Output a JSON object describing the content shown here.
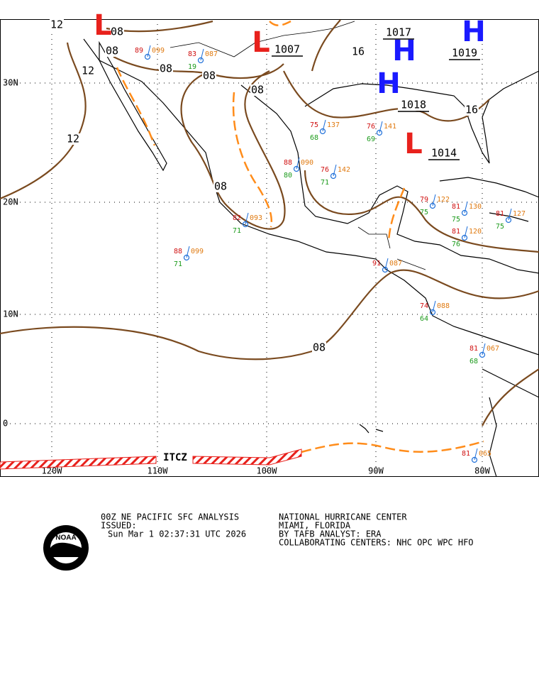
{
  "map": {
    "lat_labels": [
      "30N",
      "20N",
      "10N",
      "0"
    ],
    "lon_labels": [
      "120W",
      "110W",
      "100W",
      "90W",
      "80W"
    ],
    "pressure_centers": [
      {
        "type": "L",
        "value": null
      },
      {
        "type": "L",
        "value": "1007"
      },
      {
        "type": "H",
        "value": "1017"
      },
      {
        "type": "H",
        "value": "1019"
      },
      {
        "type": "H",
        "value": "1018"
      },
      {
        "type": "L",
        "value": "1014"
      }
    ],
    "isobar_labels": [
      "12",
      "08",
      "08",
      "12",
      "08",
      "08",
      "08",
      "16",
      "16",
      "12",
      "08",
      "08"
    ],
    "front_label": "ITCZ",
    "stations": [
      {
        "temp": "88",
        "pressure": "099",
        "dew": "71"
      },
      {
        "temp": "82",
        "pressure": "093",
        "dew": "71"
      },
      {
        "temp": "88",
        "pressure": "090",
        "dew": "80"
      },
      {
        "temp": "76",
        "pressure": "142",
        "dew": "71"
      },
      {
        "temp": "79",
        "pressure": "122",
        "dew": "75"
      },
      {
        "temp": "81",
        "pressure": "130",
        "dew": "75"
      },
      {
        "temp": "81",
        "pressure": "120",
        "dew": "76"
      },
      {
        "temp": "81",
        "pressure": "127",
        "dew": "75"
      },
      {
        "temp": "91",
        "pressure": "087",
        "dew": null
      },
      {
        "temp": "81",
        "pressure": "067",
        "dew": "68"
      },
      {
        "temp": "81",
        "pressure": "065",
        "dew": null
      },
      {
        "temp": "83",
        "pressure": "087",
        "dew": "19"
      },
      {
        "temp": "89",
        "pressure": "099",
        "dew": null
      },
      {
        "temp": "74",
        "pressure": "088",
        "dew": "64"
      },
      {
        "temp": "75",
        "pressure": "137",
        "dew": "68"
      },
      {
        "temp": "76",
        "pressure": "141",
        "dew": "69"
      }
    ]
  },
  "footer": {
    "product": "00Z NE PACIFIC SFC ANALYSIS",
    "issued": "ISSUED:",
    "time": "Sun Mar 1 02:37:31 UTC 2026",
    "center": "NATIONAL HURRICANE CENTER",
    "location": "MIAMI, FLORIDA",
    "analyst": "BY TAFB ANALYST: ERA",
    "collaborating": "COLLABORATING CENTERS: NHC OPC WPC HFO",
    "logo_text": "NOAA"
  }
}
